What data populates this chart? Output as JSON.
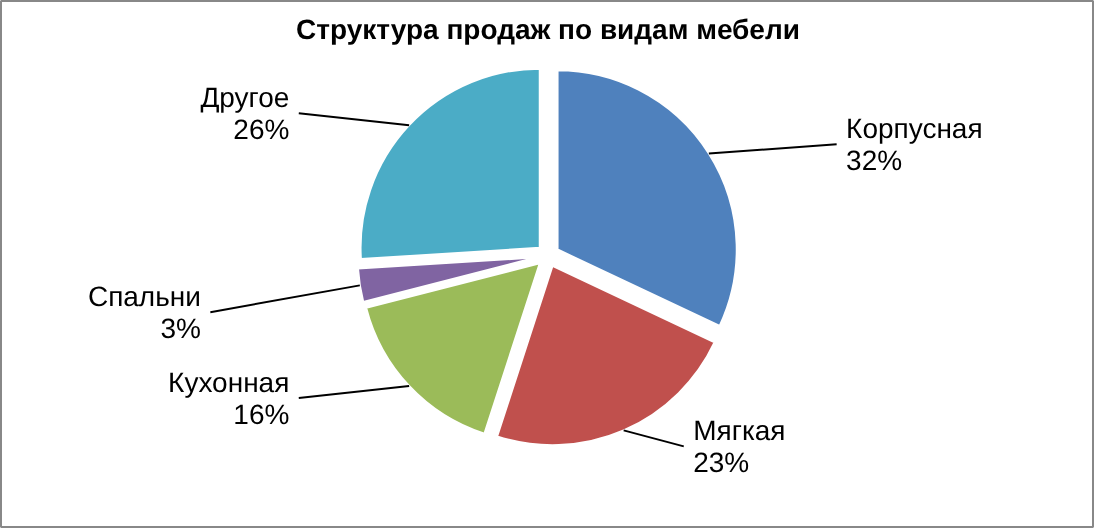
{
  "chart_data": {
    "type": "pie",
    "title": "Структура продаж по видам мебели",
    "categories": [
      "Корпусная",
      "Мягкая",
      "Кухонная",
      "Спальни",
      "Другое"
    ],
    "values": [
      32,
      23,
      16,
      3,
      26
    ],
    "value_labels": [
      "32%",
      "23%",
      "16%",
      "3%",
      "26%"
    ],
    "colors": [
      "#4f81bd",
      "#c0504d",
      "#9bbb59",
      "#8064a2",
      "#4bacc6"
    ]
  }
}
